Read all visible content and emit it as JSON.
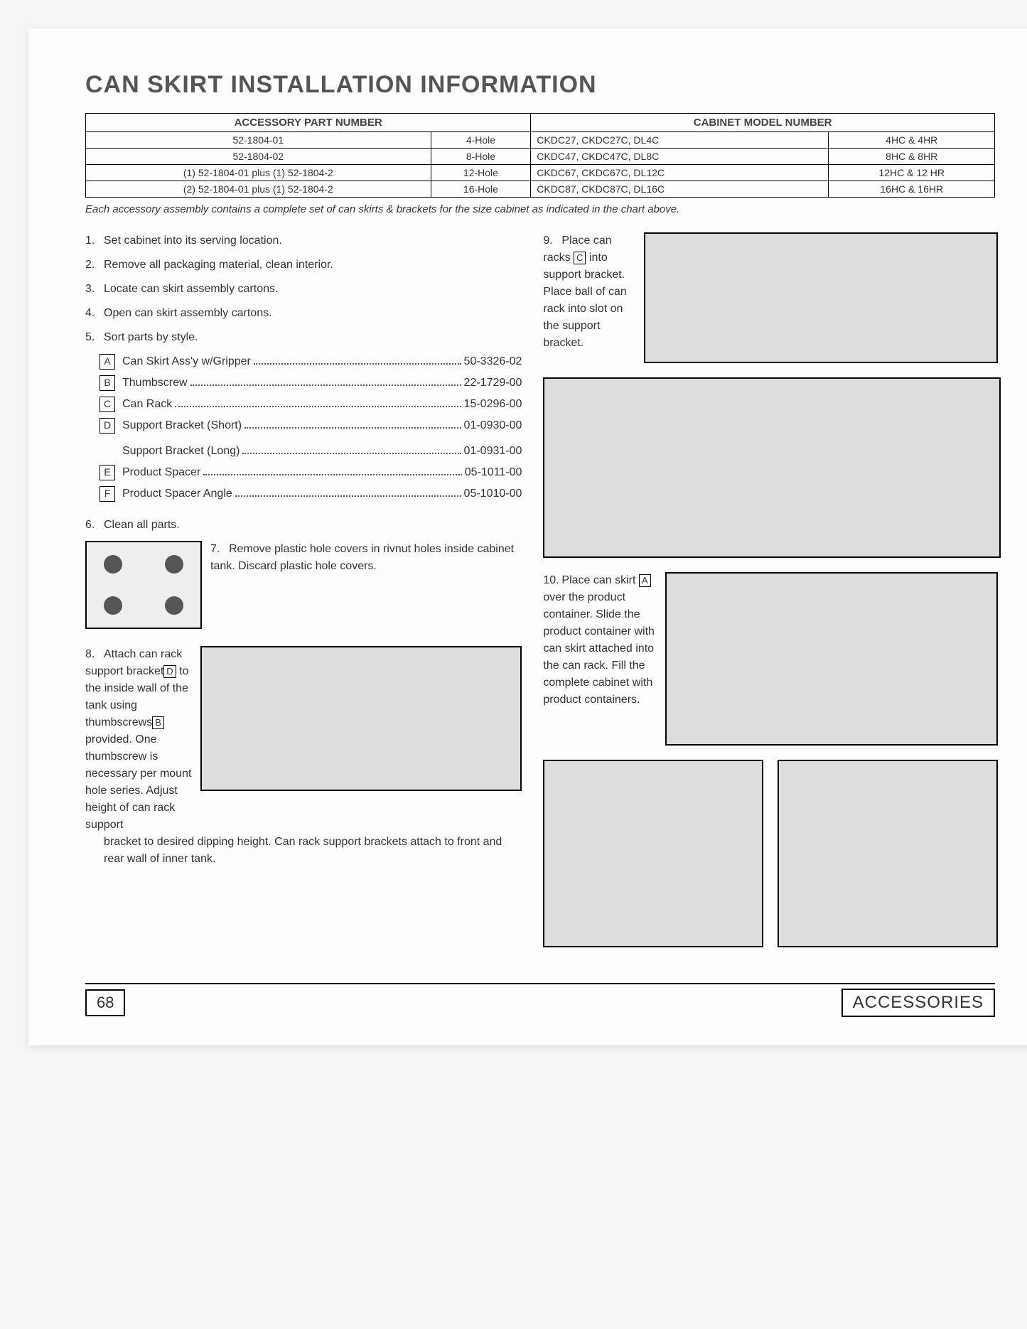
{
  "title": "CAN SKIRT INSTALLATION INFORMATION",
  "table": {
    "header_acc": "ACCESSORY PART NUMBER",
    "header_cab": "CABINET MODEL NUMBER",
    "rows": [
      {
        "acc": "52-1804-01",
        "hole": "4-Hole",
        "cab": "CKDC27, CKDC27C, DL4C",
        "model": "4HC & 4HR"
      },
      {
        "acc": "52-1804-02",
        "hole": "8-Hole",
        "cab": "CKDC47, CKDC47C, DL8C",
        "model": "8HC & 8HR"
      },
      {
        "acc": "(1) 52-1804-01 plus (1) 52-1804-2",
        "hole": "12-Hole",
        "cab": "CKDC67, CKDC67C, DL12C",
        "model": "12HC & 12 HR"
      },
      {
        "acc": "(2) 52-1804-01 plus (1) 52-1804-2",
        "hole": "16-Hole",
        "cab": "CKDC87, CKDC87C, DL16C",
        "model": "16HC & 16HR"
      }
    ]
  },
  "note": "Each accessory assembly contains a complete set of can skirts & brackets for the size cabinet as indicated in the chart above.",
  "step1": "Set cabinet into its serving location.",
  "step2": "Remove all packaging material, clean interior.",
  "step3": "Locate can skirt assembly cartons.",
  "step4": "Open can skirt assembly cartons.",
  "step5": "Sort parts by style.",
  "parts": [
    {
      "letter": "A",
      "label": "Can Skirt Ass'y w/Gripper",
      "num": "50-3326-02"
    },
    {
      "letter": "B",
      "label": "Thumbscrew",
      "num": "22-1729-00"
    },
    {
      "letter": "C",
      "label": "Can Rack",
      "num": "15-0296-00"
    },
    {
      "letter": "D",
      "label": "Support Bracket (Short)",
      "num": "01-0930-00"
    },
    {
      "letter": "",
      "label": "Support Bracket (Long)",
      "num": "01-0931-00"
    },
    {
      "letter": "E",
      "label": "Product Spacer",
      "num": "05-1011-00"
    },
    {
      "letter": "F",
      "label": "Product Spacer Angle",
      "num": "05-1010-00"
    }
  ],
  "step6": "Clean all parts.",
  "step7": "Remove plastic hole covers in rivnut holes inside cabinet tank. Discard plastic hole covers.",
  "step8a": "Attach can rack support bracket",
  "step8b": "to the inside wall of the tank using thumbscrews",
  "step8c": "provided. One thumbscrew is necessary per mount hole series. Adjust height of can rack support",
  "step8d": "bracket to desired dipping height. Can rack support brackets attach to front and rear wall of inner tank.",
  "step9a": "Place can racks",
  "step9b": "into support bracket. Place ball of can rack into slot on the support bracket.",
  "step10a": "Place can skirt",
  "step10b": "over the product container. Slide the product container with can skirt attached into the can rack. Fill the complete cabinet with product containers.",
  "pagenum": "68",
  "footer_label": "ACCESSORIES"
}
